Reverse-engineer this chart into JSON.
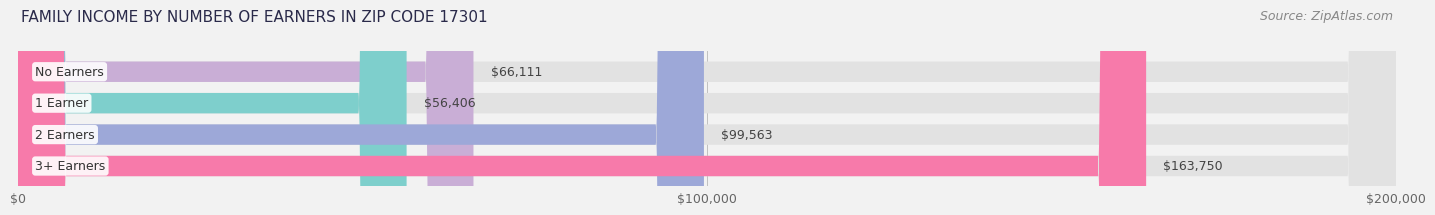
{
  "title": "FAMILY INCOME BY NUMBER OF EARNERS IN ZIP CODE 17301",
  "source": "Source: ZipAtlas.com",
  "categories": [
    "No Earners",
    "1 Earner",
    "2 Earners",
    "3+ Earners"
  ],
  "values": [
    66111,
    56406,
    99563,
    163750
  ],
  "bar_colors": [
    "#c9aed6",
    "#7ecfcc",
    "#9da8d8",
    "#f77aaa"
  ],
  "bar_labels": [
    "$66,111",
    "$56,406",
    "$99,563",
    "$163,750"
  ],
  "xlim": [
    0,
    200000
  ],
  "xticks": [
    0,
    100000,
    200000
  ],
  "xtick_labels": [
    "$0",
    "$100,000",
    "$200,000"
  ],
  "background_color": "#f2f2f2",
  "bar_bg_color": "#e2e2e2",
  "title_fontsize": 11,
  "source_fontsize": 9,
  "label_fontsize": 9,
  "category_fontsize": 9,
  "bar_height": 0.65
}
